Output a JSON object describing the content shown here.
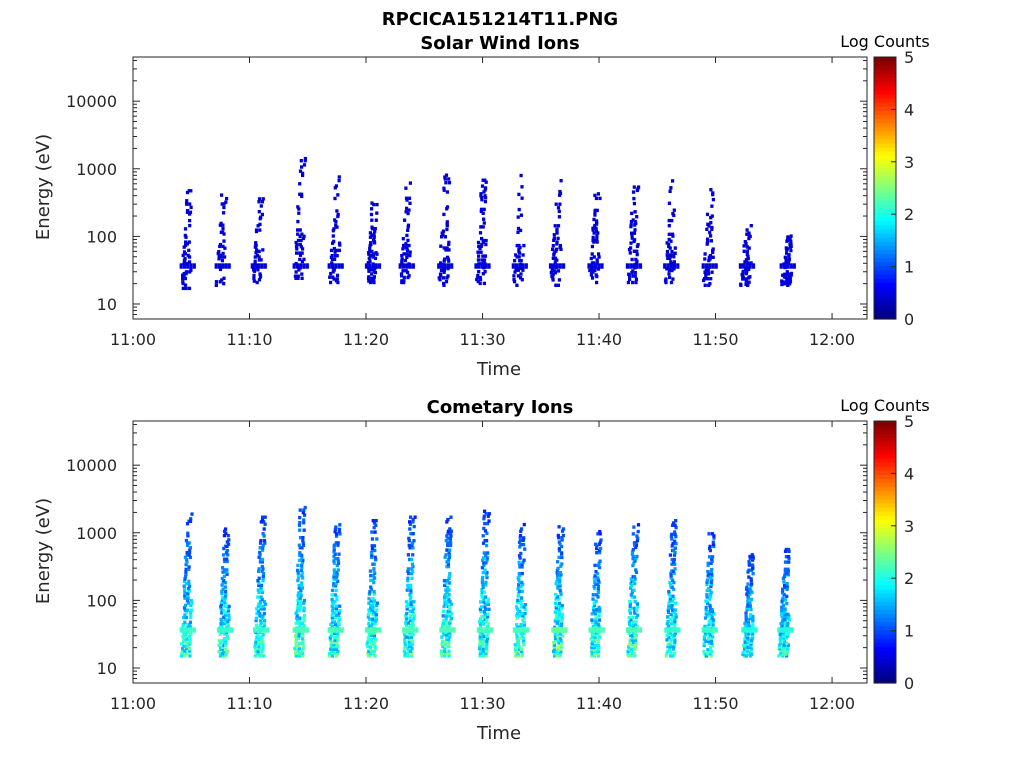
{
  "figure_title": "RPCICA151214T11.PNG",
  "chart_data": [
    {
      "type": "heatmap",
      "title": "Solar Wind Ions",
      "xlabel": "Time",
      "ylabel": "Energy (eV)",
      "x_ticks": [
        "11:00",
        "11:10",
        "11:20",
        "11:30",
        "11:40",
        "11:50",
        "12:00"
      ],
      "x_range_minutes": [
        0,
        63
      ],
      "y_ticks": [
        10,
        100,
        1000,
        10000
      ],
      "y_range": [
        6,
        45000
      ],
      "y_scale": "log",
      "colorbar_label": "Log Counts",
      "colorbar_ticks": [
        0,
        1,
        2,
        3,
        4,
        5
      ],
      "colormap": "jet",
      "sweeps": [
        {
          "t": 4.3,
          "emin": 18,
          "emax": 500,
          "level": 0.05
        },
        {
          "t": 7.3,
          "emin": 20,
          "emax": 700,
          "level": 0.05
        },
        {
          "t": 10.4,
          "emin": 22,
          "emax": 380,
          "level": 0.05
        },
        {
          "t": 14.0,
          "emin": 22,
          "emax": 1500,
          "level": 0.05
        },
        {
          "t": 17.0,
          "emin": 22,
          "emax": 800,
          "level": 0.05
        },
        {
          "t": 20.2,
          "emin": 22,
          "emax": 380,
          "level": 0.05
        },
        {
          "t": 23.1,
          "emin": 22,
          "emax": 650,
          "level": 0.05
        },
        {
          "t": 26.4,
          "emin": 20,
          "emax": 850,
          "level": 0.05
        },
        {
          "t": 29.6,
          "emin": 20,
          "emax": 1000,
          "level": 0.05
        },
        {
          "t": 32.8,
          "emin": 20,
          "emax": 900,
          "level": 0.05
        },
        {
          "t": 36.0,
          "emin": 20,
          "emax": 750,
          "level": 0.05
        },
        {
          "t": 39.3,
          "emin": 22,
          "emax": 450,
          "level": 0.05
        },
        {
          "t": 42.6,
          "emin": 22,
          "emax": 600,
          "level": 0.05
        },
        {
          "t": 45.8,
          "emin": 22,
          "emax": 700,
          "level": 0.05
        },
        {
          "t": 49.1,
          "emin": 20,
          "emax": 550,
          "level": 0.05
        },
        {
          "t": 52.3,
          "emin": 20,
          "emax": 170,
          "level": 0.05
        },
        {
          "t": 55.8,
          "emin": 20,
          "emax": 110,
          "level": 0.05
        }
      ]
    },
    {
      "type": "heatmap",
      "title": "Cometary Ions",
      "xlabel": "Time",
      "ylabel": "Energy (eV)",
      "x_ticks": [
        "11:00",
        "11:10",
        "11:20",
        "11:30",
        "11:40",
        "11:50",
        "12:00"
      ],
      "x_range_minutes": [
        0,
        63
      ],
      "y_ticks": [
        10,
        100,
        1000,
        10000
      ],
      "y_range": [
        6,
        45000
      ],
      "y_scale": "log",
      "colorbar_label": "Log Counts",
      "colorbar_ticks": [
        0,
        1,
        2,
        3,
        4,
        5
      ],
      "colormap": "jet",
      "sweeps": [
        {
          "t": 4.3,
          "emin": 16,
          "emax": 2000,
          "level": 1.8
        },
        {
          "t": 7.5,
          "emin": 16,
          "emax": 1200,
          "level": 1.8
        },
        {
          "t": 10.6,
          "emin": 16,
          "emax": 1800,
          "level": 1.8
        },
        {
          "t": 14.0,
          "emin": 16,
          "emax": 2500,
          "level": 1.9
        },
        {
          "t": 17.0,
          "emin": 16,
          "emax": 1500,
          "level": 1.9
        },
        {
          "t": 20.2,
          "emin": 16,
          "emax": 1600,
          "level": 1.9
        },
        {
          "t": 23.4,
          "emin": 16,
          "emax": 1800,
          "level": 1.9
        },
        {
          "t": 26.6,
          "emin": 16,
          "emax": 1800,
          "level": 1.9
        },
        {
          "t": 29.8,
          "emin": 16,
          "emax": 2200,
          "level": 1.9
        },
        {
          "t": 32.9,
          "emin": 16,
          "emax": 1400,
          "level": 1.9
        },
        {
          "t": 36.2,
          "emin": 16,
          "emax": 1300,
          "level": 2.0
        },
        {
          "t": 39.4,
          "emin": 16,
          "emax": 1100,
          "level": 1.9
        },
        {
          "t": 42.6,
          "emin": 16,
          "emax": 1500,
          "level": 1.9
        },
        {
          "t": 45.9,
          "emin": 16,
          "emax": 1600,
          "level": 1.8
        },
        {
          "t": 49.1,
          "emin": 16,
          "emax": 1100,
          "level": 1.8
        },
        {
          "t": 52.5,
          "emin": 16,
          "emax": 500,
          "level": 1.7
        },
        {
          "t": 55.6,
          "emin": 16,
          "emax": 600,
          "level": 1.7
        }
      ]
    }
  ]
}
